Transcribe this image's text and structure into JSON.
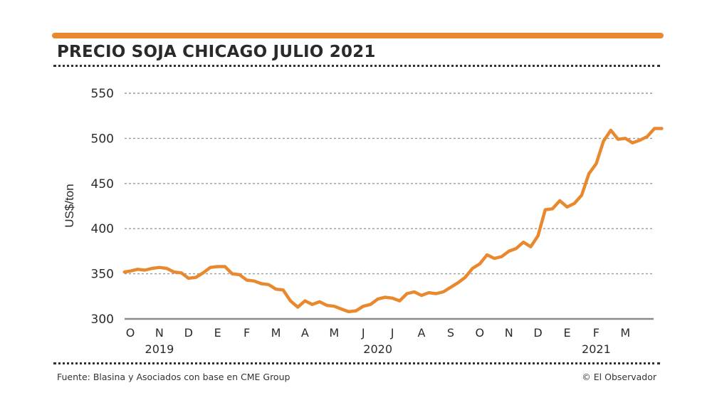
{
  "colors": {
    "accent": "#E8892F",
    "grid": "#9a9a9a",
    "baseline": "#8c8c8c",
    "text": "#2b2b2b"
  },
  "footer": {
    "source": "Fuente: Blasina y Asociados con base en CME Group",
    "credit": "© El Observador"
  },
  "chart_data": {
    "type": "line",
    "title": "PRECIO SOJA CHICAGO JULIO 2021",
    "xlabel": "",
    "ylabel": "US$/ton",
    "ylim": [
      300,
      550
    ],
    "yticks": [
      300,
      350,
      400,
      450,
      500,
      550
    ],
    "grid": true,
    "xlim": [
      0,
      18.5
    ],
    "month_ticks": [
      "O",
      "N",
      "D",
      "E",
      "F",
      "M",
      "A",
      "M",
      "J",
      "J",
      "A",
      "S",
      "O",
      "N",
      "D",
      "E",
      "F",
      "M"
    ],
    "year_labels": [
      {
        "label": "2019",
        "at": 1
      },
      {
        "label": "2020",
        "at": 8.5
      },
      {
        "label": "2021",
        "at": 16
      }
    ],
    "series": [
      {
        "name": "Precio soja julio 2021",
        "x": [
          -0.2,
          0.0,
          0.25,
          0.5,
          0.75,
          1.0,
          1.25,
          1.5,
          1.75,
          2.0,
          2.25,
          2.5,
          2.75,
          3.0,
          3.25,
          3.5,
          3.75,
          4.0,
          4.25,
          4.5,
          4.75,
          5.0,
          5.25,
          5.5,
          5.75,
          6.0,
          6.25,
          6.5,
          6.75,
          7.0,
          7.25,
          7.5,
          7.75,
          8.0,
          8.25,
          8.5,
          8.75,
          9.0,
          9.25,
          9.5,
          9.75,
          10.0,
          10.25,
          10.5,
          10.75,
          11.0,
          11.25,
          11.5,
          11.75,
          12.0,
          12.25,
          12.5,
          12.75,
          13.0,
          13.25,
          13.5,
          13.75,
          14.0,
          14.25,
          14.5,
          14.75,
          15.0,
          15.25,
          15.5,
          15.75,
          16.0,
          16.25,
          16.5,
          16.75,
          17.0,
          17.25,
          17.5,
          17.75,
          18.0,
          18.25
        ],
        "values": [
          352,
          353,
          355,
          354,
          356,
          357,
          356,
          352,
          351,
          345,
          346,
          351,
          357,
          358,
          358,
          350,
          349,
          343,
          342,
          339,
          338,
          333,
          332,
          320,
          313,
          320,
          316,
          319,
          315,
          314,
          311,
          308,
          309,
          314,
          316,
          322,
          324,
          323,
          320,
          328,
          330,
          326,
          329,
          328,
          330,
          335,
          340,
          346,
          356,
          361,
          371,
          367,
          369,
          375,
          378,
          385,
          380,
          392,
          421,
          422,
          431,
          424,
          428,
          437,
          461,
          472,
          497,
          509,
          499,
          500,
          495,
          498,
          502,
          511,
          511
        ]
      }
    ]
  }
}
